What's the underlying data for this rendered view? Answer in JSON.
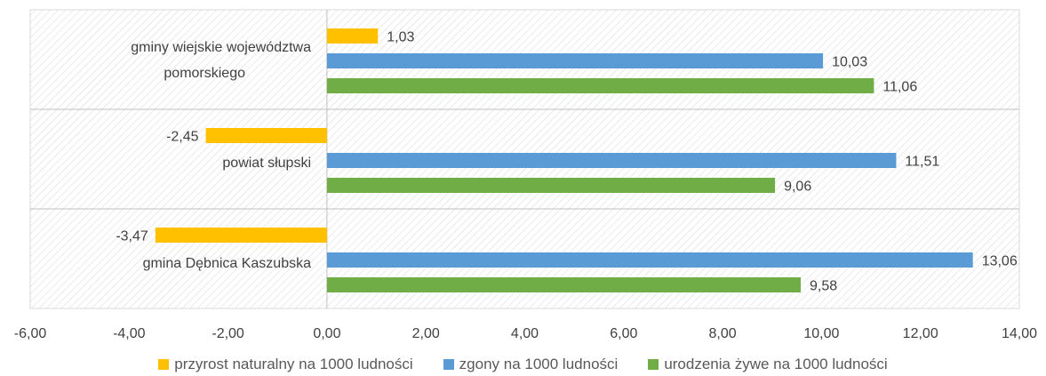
{
  "chart_data": {
    "type": "bar",
    "orientation": "horizontal",
    "categories": [
      "gminy wiejskie województwa pomorskiego",
      "powiat słupski",
      "gmina Dębnica Kaszubska"
    ],
    "category_label_lines": [
      [
        "gminy wiejskie województwa",
        "pomorskiego"
      ],
      [
        "powiat słupski"
      ],
      [
        "gmina Dębnica Kaszubska"
      ]
    ],
    "series": [
      {
        "name": "przyrost naturalny na 1000 ludności",
        "color": "#FFC000",
        "values": [
          1.03,
          -2.45,
          -3.47
        ],
        "labels": [
          "1,03",
          "-2,45",
          "-3,47"
        ]
      },
      {
        "name": "zgony na 1000 ludności",
        "color": "#5B9BD5",
        "values": [
          10.03,
          11.51,
          13.06
        ],
        "labels": [
          "10,03",
          "11,51",
          "13,06"
        ]
      },
      {
        "name": "urodzenia żywe na 1000 ludności",
        "color": "#70AD47",
        "values": [
          11.06,
          9.06,
          9.58
        ],
        "labels": [
          "11,06",
          "9,06",
          "9,58"
        ]
      }
    ],
    "xlim": [
      -6,
      14
    ],
    "x_ticks": [
      -6,
      -4,
      -2,
      0,
      2,
      4,
      6,
      8,
      10,
      12,
      14
    ],
    "x_tick_labels": [
      "-6,00",
      "-4,00",
      "-2,00",
      "0,00",
      "2,00",
      "4,00",
      "6,00",
      "8,00",
      "10,00",
      "12,00",
      "14,00"
    ],
    "title": "",
    "xlabel": "",
    "ylabel": "",
    "legend_position": "bottom",
    "background": "hatched"
  }
}
